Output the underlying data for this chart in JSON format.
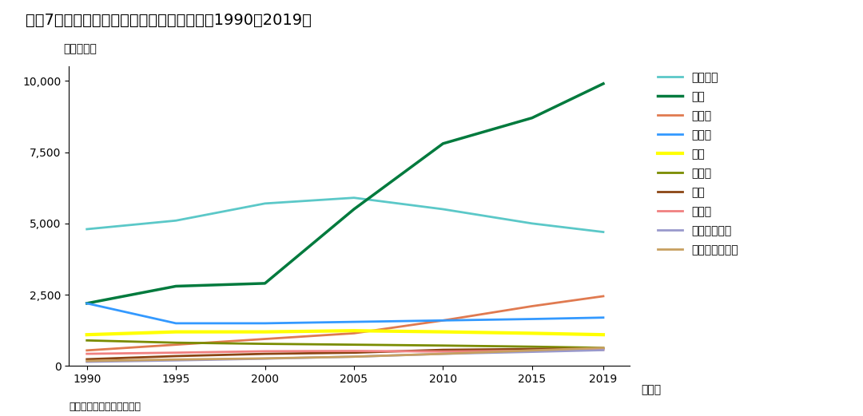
{
  "title": "［図7］主要国における二酸化炭素排出量：1990～2019年",
  "ylabel": "（億トン）",
  "xlabel_suffix": "（年）",
  "source": "資料：国際エネルギー機関",
  "years": [
    1990,
    1995,
    2000,
    2005,
    2010,
    2015,
    2019
  ],
  "series": [
    {
      "label": "アメリカ",
      "color": "#5bc8c8",
      "linewidth": 2.0,
      "data": [
        4800,
        5100,
        5700,
        5900,
        5500,
        5000,
        4700
      ]
    },
    {
      "label": "中国",
      "color": "#007a3d",
      "linewidth": 2.5,
      "data": [
        2200,
        2800,
        2900,
        5500,
        7800,
        8700,
        9900
      ]
    },
    {
      "label": "インド",
      "color": "#e07a50",
      "linewidth": 2.0,
      "data": [
        550,
        750,
        950,
        1150,
        1600,
        2100,
        2450
      ]
    },
    {
      "label": "ロシア",
      "color": "#3399ff",
      "linewidth": 2.0,
      "data": [
        2200,
        1500,
        1500,
        1550,
        1600,
        1650,
        1700
      ]
    },
    {
      "label": "日本",
      "color": "#ffff00",
      "linewidth": 3.0,
      "data": [
        1100,
        1200,
        1200,
        1240,
        1200,
        1150,
        1100
      ]
    },
    {
      "label": "ドイツ",
      "color": "#7a8c00",
      "linewidth": 2.0,
      "data": [
        900,
        820,
        780,
        750,
        720,
        680,
        640
      ]
    },
    {
      "label": "韓国",
      "color": "#8b4513",
      "linewidth": 2.0,
      "data": [
        240,
        350,
        430,
        470,
        570,
        600,
        610
      ]
    },
    {
      "label": "カナダ",
      "color": "#f08080",
      "linewidth": 2.0,
      "data": [
        430,
        470,
        520,
        530,
        510,
        540,
        570
      ]
    },
    {
      "label": "インドネシア",
      "color": "#9999cc",
      "linewidth": 2.0,
      "data": [
        150,
        200,
        260,
        330,
        430,
        500,
        560
      ]
    },
    {
      "label": "サウジアラビア",
      "color": "#c8a060",
      "linewidth": 2.0,
      "data": [
        180,
        230,
        270,
        330,
        430,
        550,
        640
      ]
    }
  ],
  "ylim": [
    0,
    10500
  ],
  "yticks": [
    0,
    2500,
    5000,
    7500,
    10000
  ],
  "xticks": [
    1990,
    1995,
    2000,
    2005,
    2010,
    2015,
    2019
  ],
  "background_color": "#ffffff",
  "title_fontsize": 14,
  "axis_fontsize": 10,
  "legend_fontsize": 10
}
